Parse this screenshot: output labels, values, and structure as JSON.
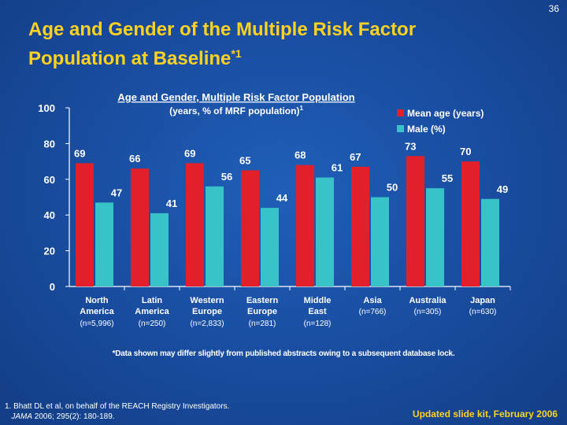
{
  "slide_number": "36",
  "title": {
    "line1": "Age and Gender of the Multiple Risk Factor",
    "line2": "Population at Baseline",
    "superscript": "*1"
  },
  "colors": {
    "background": "#1a4fa3",
    "title": "#ffd21f",
    "mean_age": "#e3202a",
    "male": "#38c3c8"
  },
  "chart_data": {
    "type": "bar",
    "title": "Age and Gender, Multiple Risk Factor Population",
    "subtitle": "(years, % of MRF population)",
    "subtitle_superscript": "1",
    "categories": [
      {
        "name_line1": "North",
        "name_line2": "America",
        "n": "(n=5,996)"
      },
      {
        "name_line1": "Latin",
        "name_line2": "America",
        "n": "(n=250)"
      },
      {
        "name_line1": "Western",
        "name_line2": "Europe",
        "n": "(n=2,833)"
      },
      {
        "name_line1": "Eastern",
        "name_line2": "Europe",
        "n": "(n=281)"
      },
      {
        "name_line1": "Middle",
        "name_line2": "East",
        "n": "(n=128)"
      },
      {
        "name_line1": "Asia",
        "name_line2": "",
        "n": "(n=766)"
      },
      {
        "name_line1": "Australia",
        "name_line2": "",
        "n": "(n=305)"
      },
      {
        "name_line1": "Japan",
        "name_line2": "",
        "n": "(n=630)"
      }
    ],
    "series": [
      {
        "name": "Mean age (years)",
        "values": [
          69,
          66,
          69,
          65,
          68,
          67,
          73,
          70
        ]
      },
      {
        "name": "Male (%)",
        "values": [
          47,
          41,
          56,
          44,
          61,
          50,
          55,
          49
        ]
      }
    ],
    "yticks": [
      0,
      20,
      40,
      60,
      80,
      100
    ],
    "ylim": [
      0,
      100
    ],
    "grid": false,
    "legend_position": "top-right"
  },
  "footnote": "*Data shown may differ slightly from published abstracts owing to a subsequent database lock.",
  "reference": {
    "line1": "1. Bhatt DL et al, on behalf of the REACH Registry Investigators.",
    "journal": "JAMA",
    "citation": " 2006; 295(2): 180-189."
  },
  "updated": "Updated slide kit, February 2006"
}
